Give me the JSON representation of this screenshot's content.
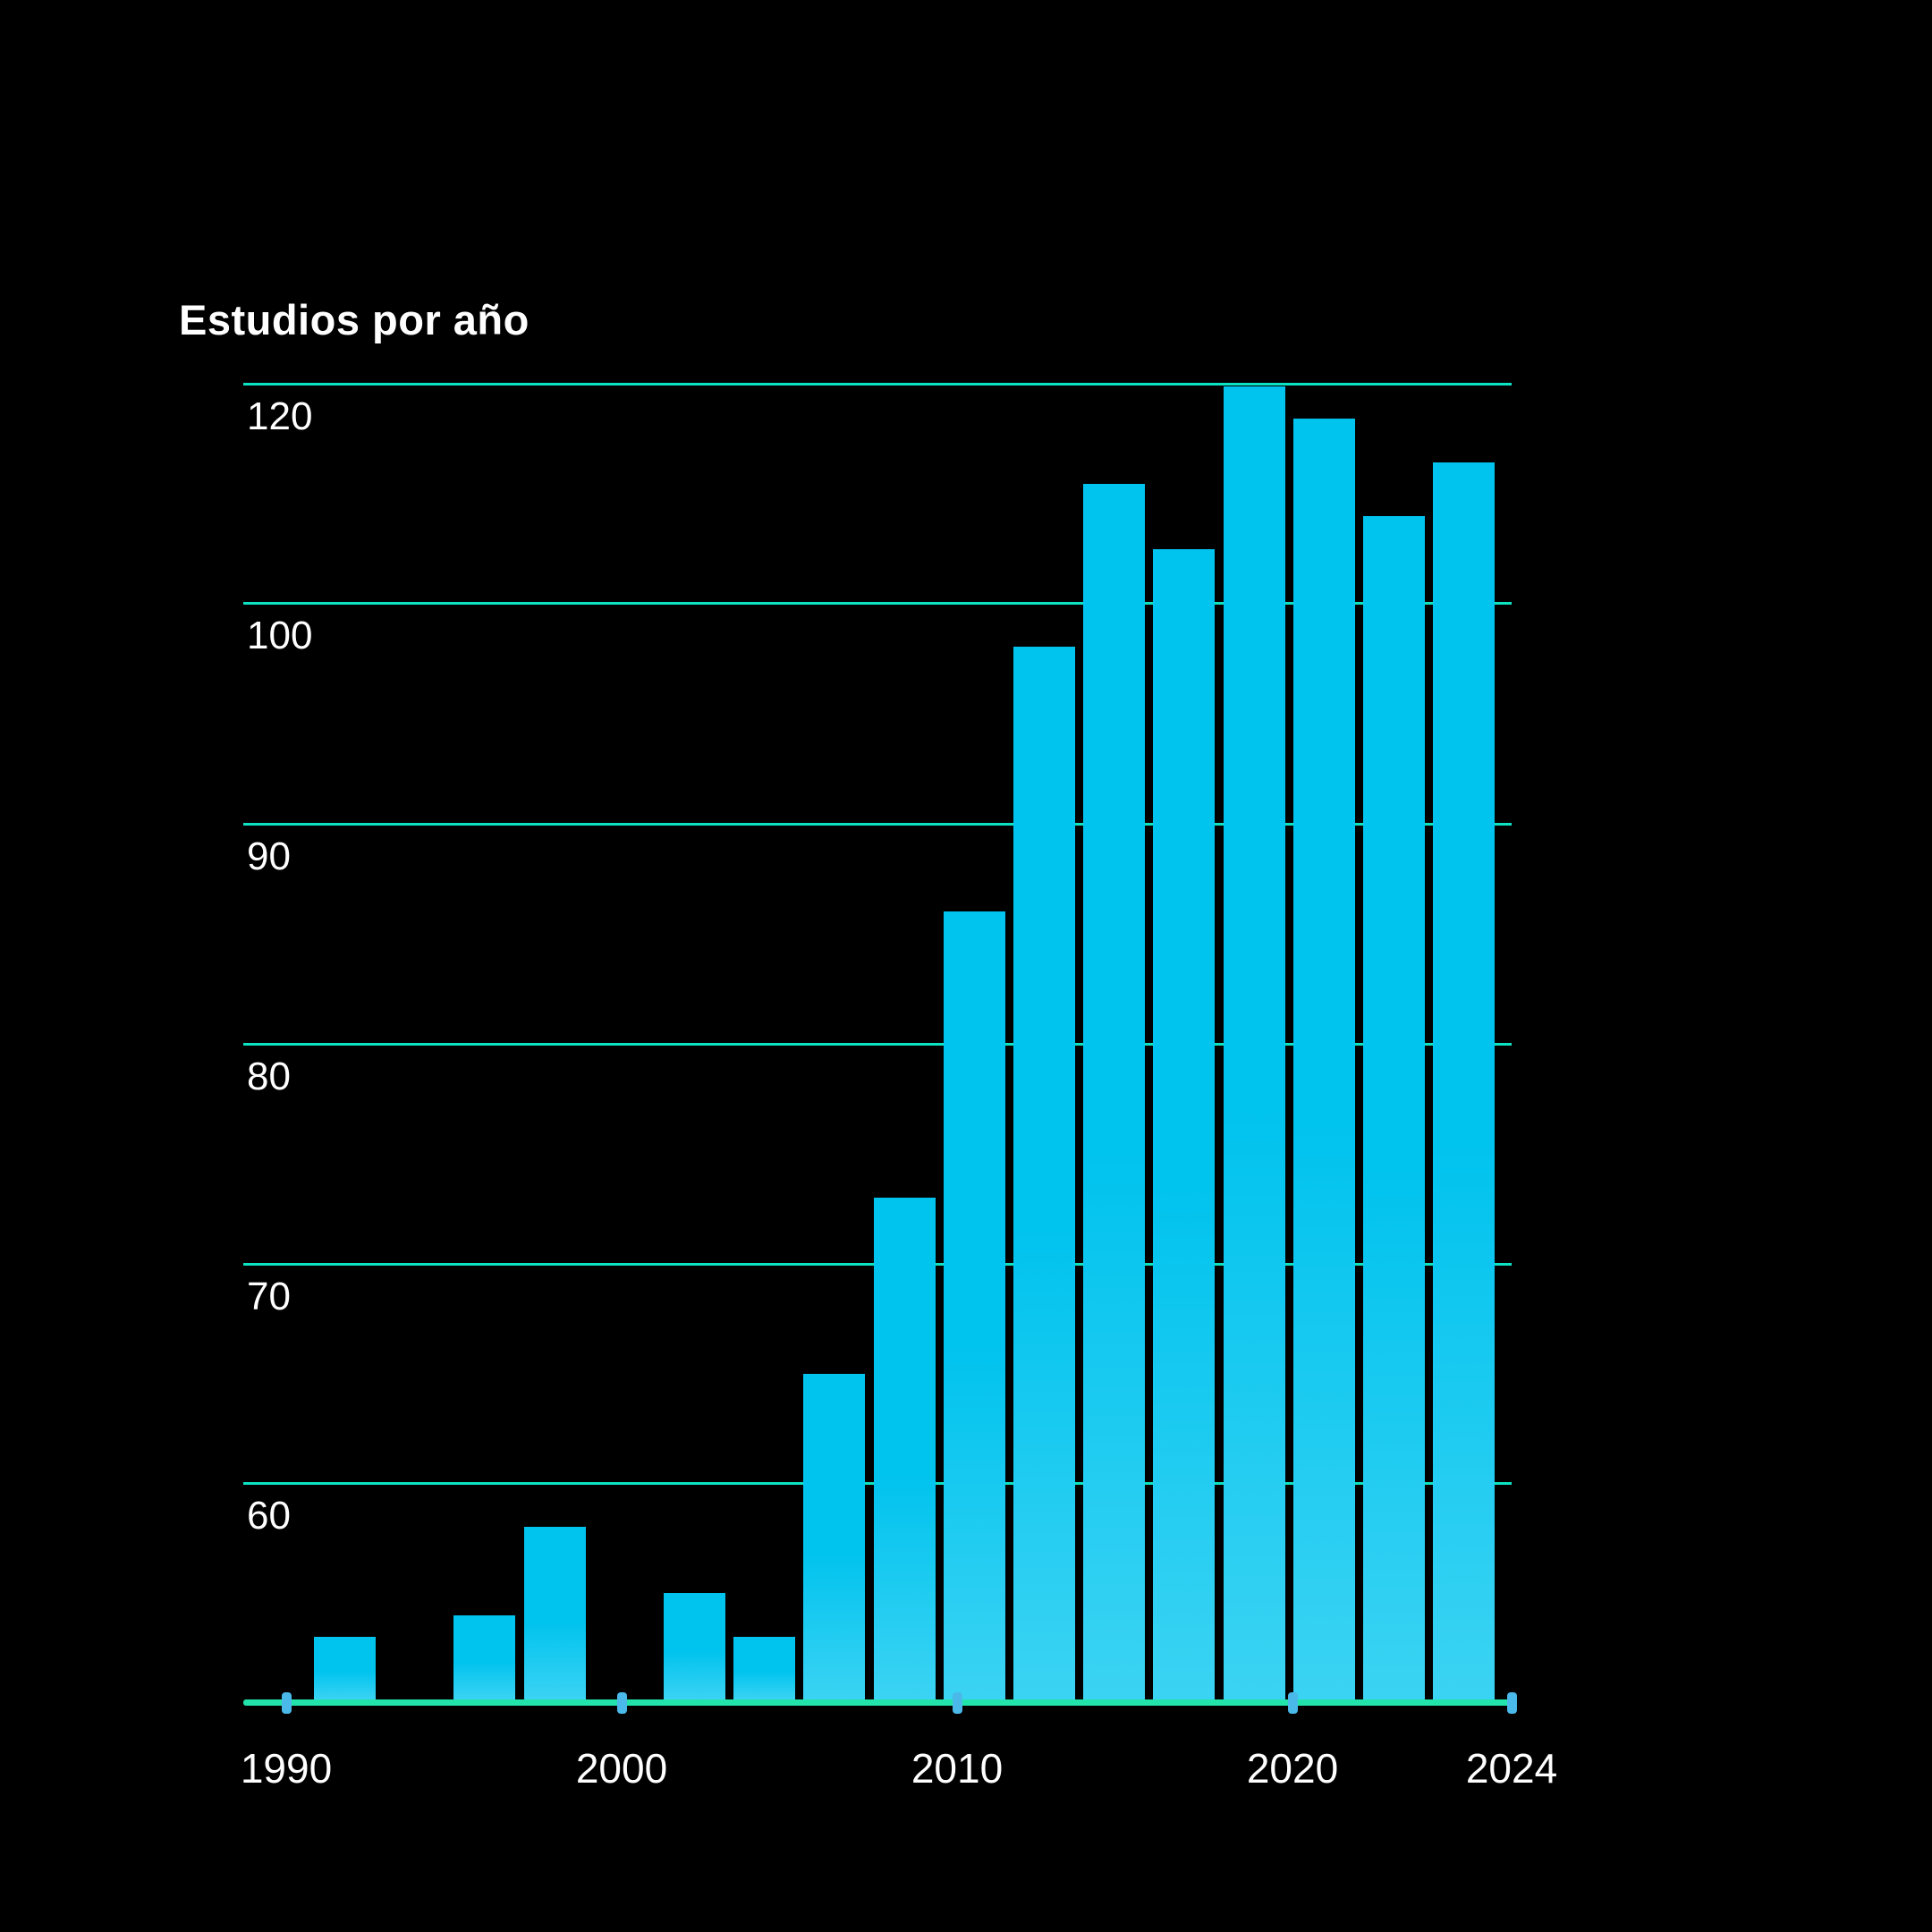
{
  "title": "Estudios por año",
  "colors": {
    "background": "#000000",
    "bar_top": "#00c3ee",
    "bar_bottom": "#3bd3f3",
    "gridline": "#0be3c2",
    "axis_line": "#22e3aa",
    "tick_mark": "#4ab9e9",
    "text": "#ffffff"
  },
  "chart_data": {
    "type": "bar",
    "title": "Estudios por año",
    "categories": [
      1992,
      1996,
      1998,
      2002,
      2004,
      2006,
      2008,
      2010,
      2012,
      2014,
      2016,
      2018,
      2020,
      2022,
      2024
    ],
    "values": [
      53,
      54,
      58,
      55,
      53,
      65,
      73,
      86,
      98,
      111,
      105,
      120,
      117,
      108,
      113
    ],
    "x_tick_labels": [
      "1990",
      "2000",
      "2010",
      "2020",
      "2024"
    ],
    "y_tick_labels": [
      60,
      70,
      80,
      90,
      100,
      120
    ],
    "xlabel": "",
    "ylabel": "",
    "ylim": [
      50,
      122
    ],
    "grid": "horizontal gridlines on",
    "legend": "none"
  }
}
